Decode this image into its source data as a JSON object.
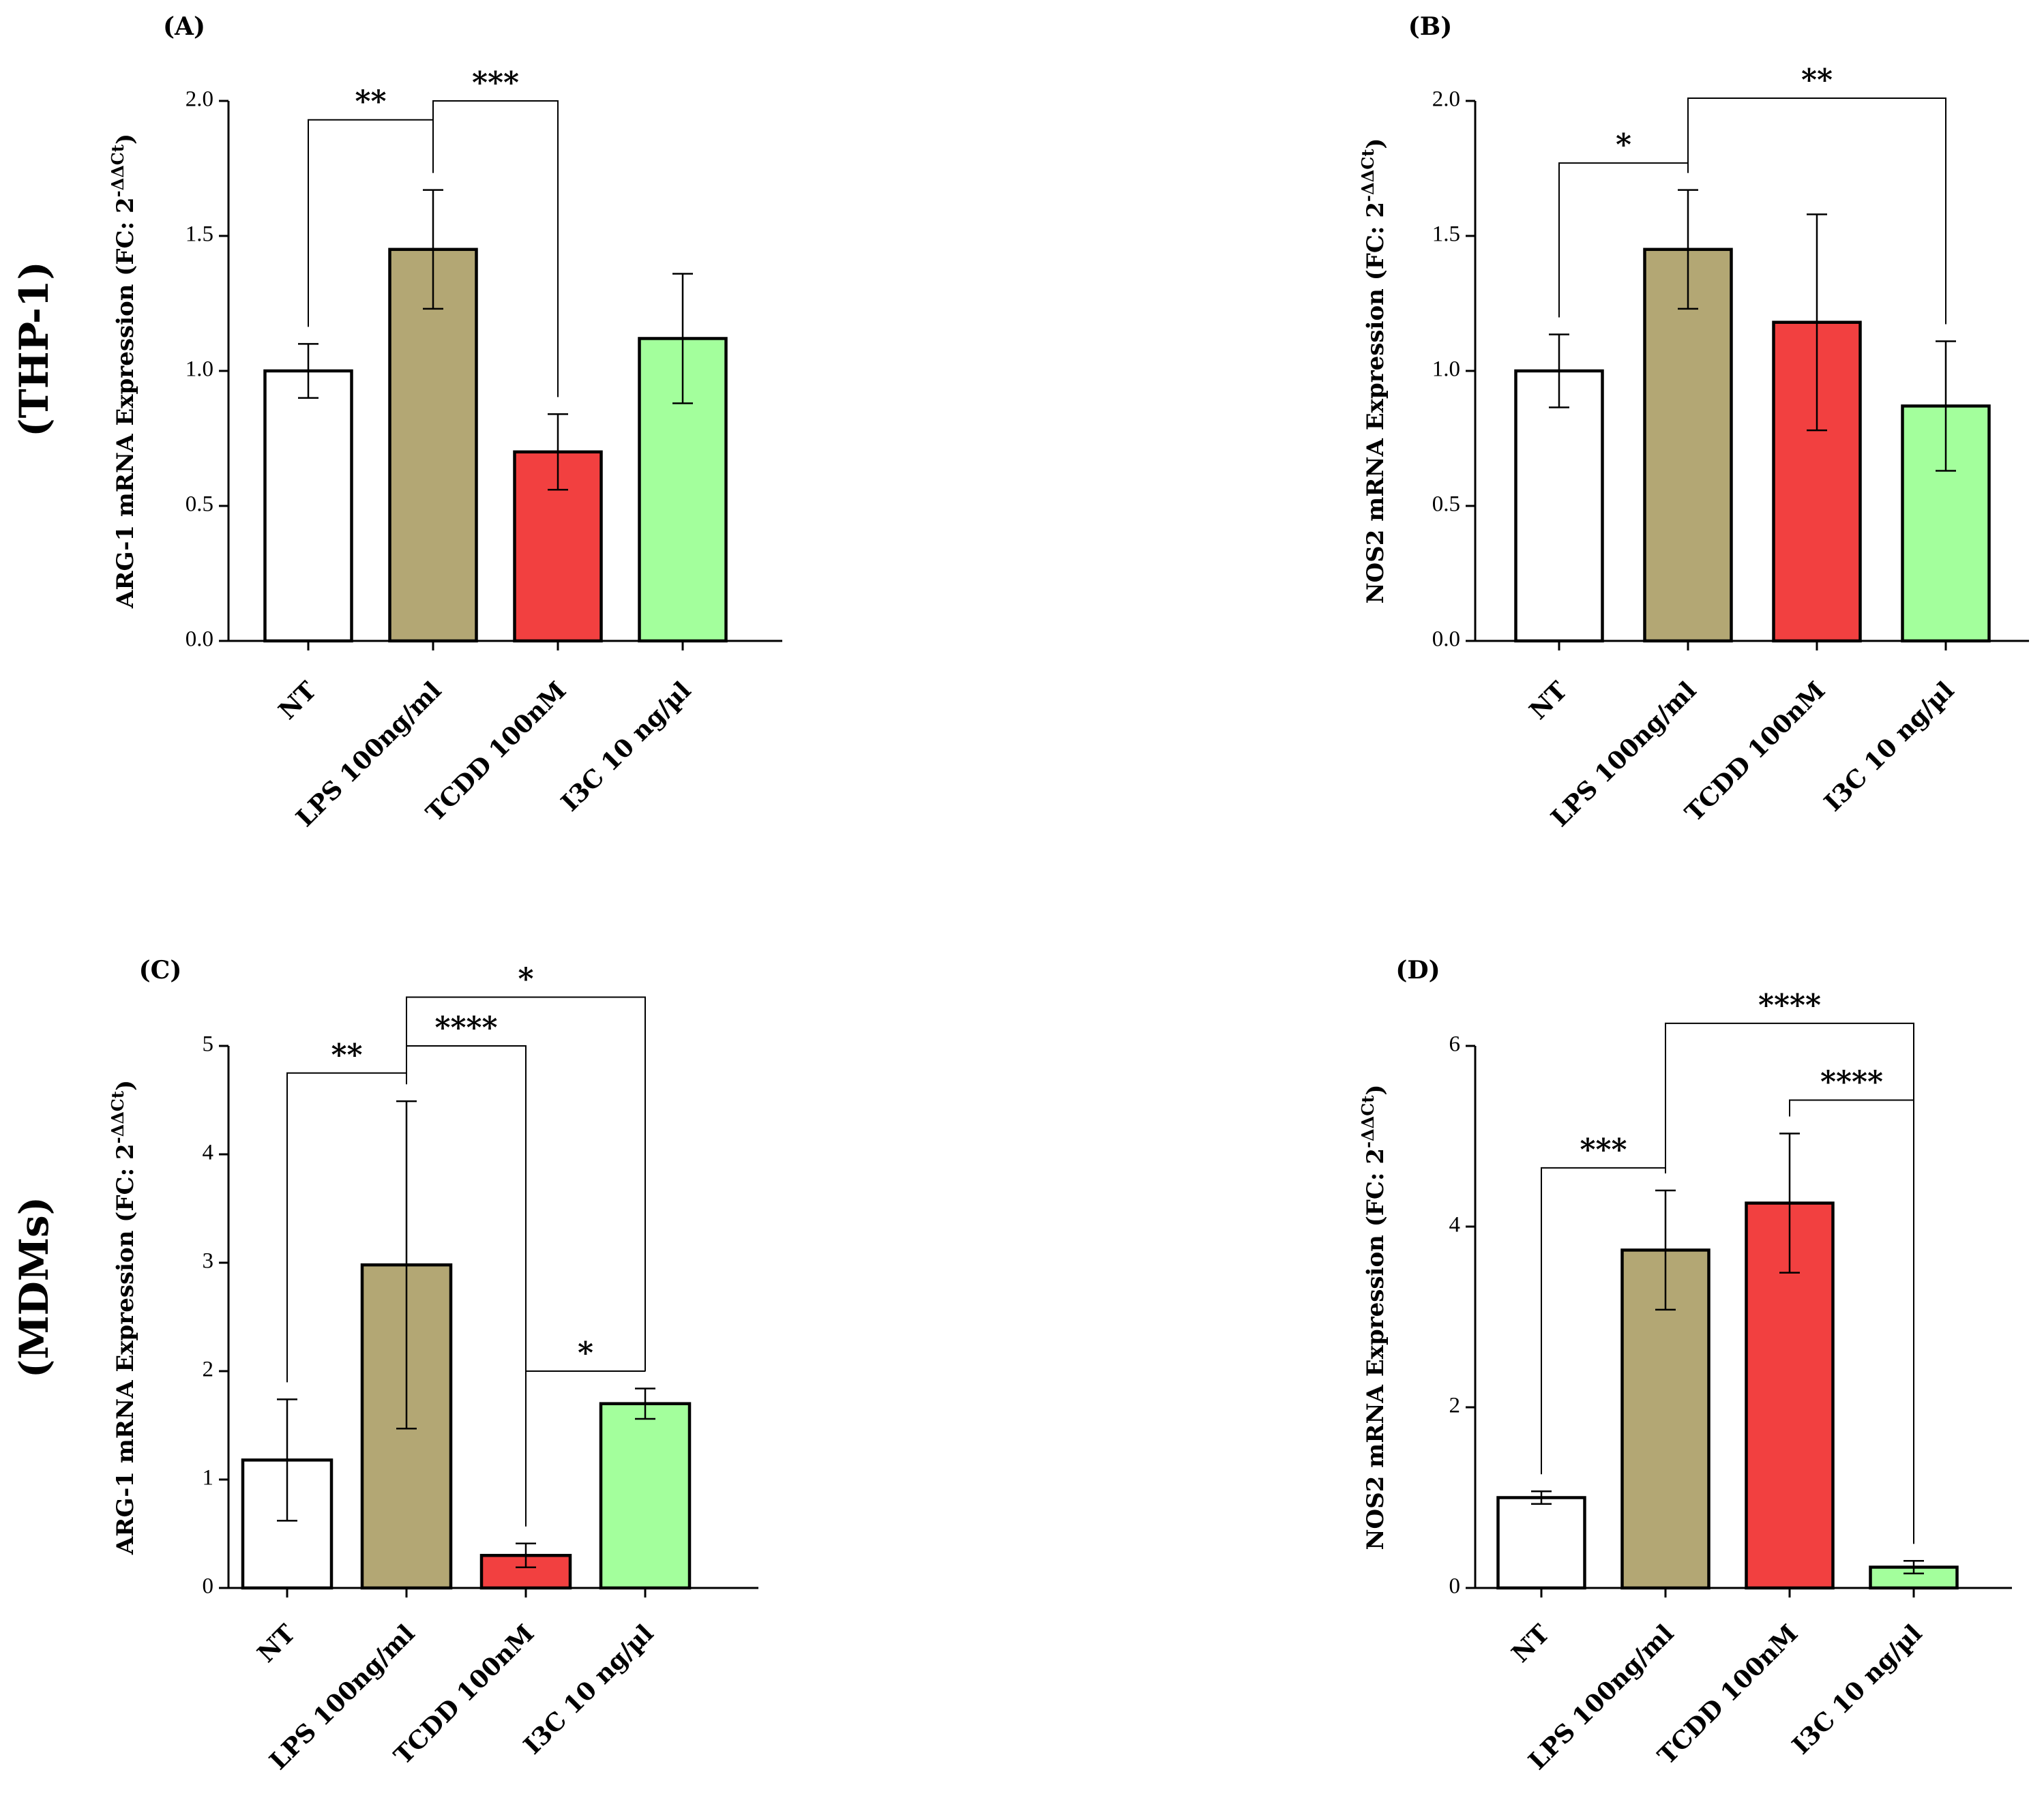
{
  "groups": [
    "(THP-1)",
    "(MDMs)"
  ],
  "colors": {
    "NT": "#ffffff",
    "LPS": "#b3a774",
    "TCDD": "#f24040",
    "I3C": "#a3ff9c"
  },
  "chart_data": [
    {
      "id": "A",
      "type": "bar",
      "panel_label": "(A)",
      "ylabel": "ARG-1 mRNA Expression (FC: 2",
      "ylabel_sup": "-ΔΔCt",
      "ylabel_close": ")",
      "categories": [
        "NT",
        "LPS 100ng/ml",
        "TCDD 100nM",
        "I3C 10 ng/µl"
      ],
      "values": [
        1.0,
        1.45,
        0.7,
        1.12
      ],
      "errors": [
        0.1,
        0.22,
        0.14,
        0.24
      ],
      "ylim": [
        0,
        2.0
      ],
      "yticks": [
        "0.0",
        "0.5",
        "1.0",
        "1.5",
        "2.0"
      ],
      "significance": [
        {
          "from": 0,
          "to": 1,
          "label": "**",
          "level": 1.93
        },
        {
          "from": 1,
          "to": 2,
          "label": "***",
          "level": 2.0
        }
      ]
    },
    {
      "id": "B",
      "type": "bar",
      "panel_label": "(B)",
      "ylabel": "NOS2 mRNA Expression (FC: 2",
      "ylabel_sup": "-ΔΔCt",
      "ylabel_close": ")",
      "categories": [
        "NT",
        "LPS 100ng/ml",
        "TCDD 100nM",
        "I3C 10 ng/µl"
      ],
      "values": [
        1.0,
        1.45,
        1.18,
        0.87
      ],
      "errors": [
        0.135,
        0.22,
        0.4,
        0.24
      ],
      "ylim": [
        0,
        2.0
      ],
      "yticks": [
        "0.0",
        "0.5",
        "1.0",
        "1.5",
        "2.0"
      ],
      "significance": [
        {
          "from": 0,
          "to": 1,
          "label": "*",
          "level": 1.77
        },
        {
          "from": 1,
          "to": 3,
          "label": "**",
          "level": 2.01
        }
      ]
    },
    {
      "id": "C",
      "type": "bar",
      "panel_label": "(C)",
      "ylabel": "ARG-1 mRNA Expression (FC: 2",
      "ylabel_sup": "-ΔΔCt",
      "ylabel_close": ")",
      "categories": [
        "NT",
        "LPS 100ng/ml",
        "TCDD 100nM",
        "I3C 10 ng/µl"
      ],
      "values": [
        1.18,
        2.98,
        0.3,
        1.7
      ],
      "errors": [
        0.56,
        1.51,
        0.11,
        0.14
      ],
      "ylim": [
        0,
        5
      ],
      "yticks": [
        "0",
        "1",
        "2",
        "3",
        "4",
        "5"
      ],
      "significance": [
        {
          "from": 0,
          "to": 1,
          "label": "**",
          "level": 4.75
        },
        {
          "from": 1,
          "to": 2,
          "label": "****",
          "level": 5.0
        },
        {
          "from": 1,
          "to": 3,
          "label": "*",
          "level": 5.45
        },
        {
          "from": 2,
          "to": 3,
          "label": "*",
          "level": 2.0
        }
      ]
    },
    {
      "id": "D",
      "type": "bar",
      "panel_label": "(D)",
      "ylabel": "NOS2 mRNA Expression (FC: 2",
      "ylabel_sup": "-ΔΔCt",
      "ylabel_close": ")",
      "categories": [
        "NT",
        "LPS 100ng/ml",
        "TCDD 100nM",
        "I3C 10 ng/µl"
      ],
      "values": [
        1.0,
        3.74,
        4.26,
        0.23
      ],
      "errors": [
        0.07,
        0.66,
        0.77,
        0.07
      ],
      "ylim": [
        0,
        6
      ],
      "yticks": [
        "0",
        "2",
        "4",
        "6"
      ],
      "significance": [
        {
          "from": 0,
          "to": 1,
          "label": "***",
          "level": 4.65
        },
        {
          "from": 2,
          "to": 3,
          "label": "****",
          "level": 5.4
        },
        {
          "from": 1,
          "to": 3,
          "label": "****",
          "level": 6.25
        }
      ]
    }
  ]
}
